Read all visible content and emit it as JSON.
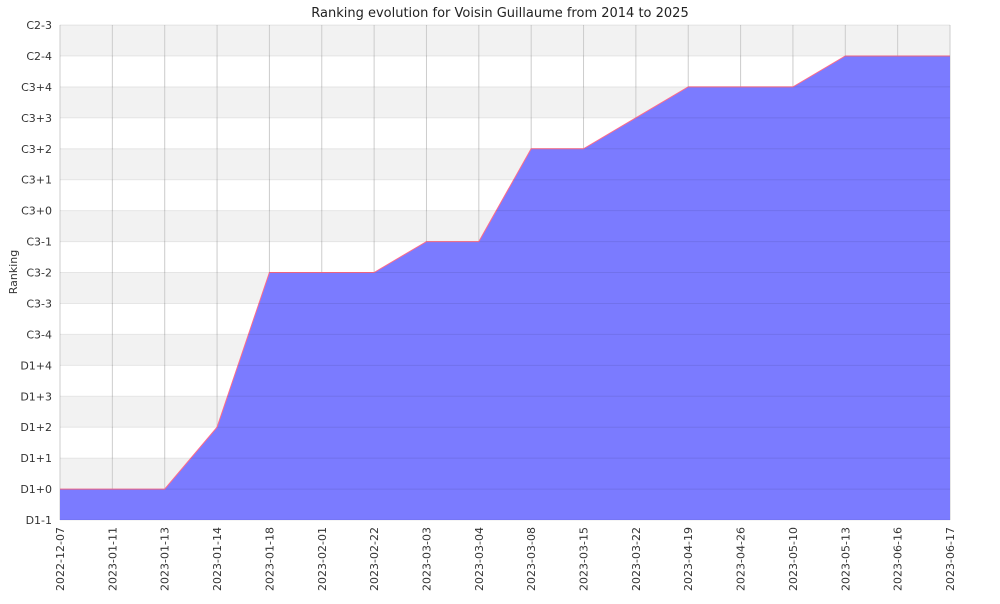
{
  "chart_data": {
    "type": "area",
    "title": "Ranking evolution for Voisin Guillaume from 2014 to 2025",
    "xlabel": "",
    "ylabel": "Ranking",
    "y_categories": [
      "D1-1",
      "D1+0",
      "D1+1",
      "D1+2",
      "D1+3",
      "D1+4",
      "C3-4",
      "C3-3",
      "C3-2",
      "C3-1",
      "C3+0",
      "C3+1",
      "C3+2",
      "C3+3",
      "C3+4",
      "C2-4",
      "C2-3"
    ],
    "x": [
      "2022-12-07",
      "2023-01-11",
      "2023-01-13",
      "2023-01-14",
      "2023-01-18",
      "2023-02-01",
      "2023-02-22",
      "2023-03-03",
      "2023-03-04",
      "2023-03-08",
      "2023-03-15",
      "2023-03-22",
      "2023-04-19",
      "2023-04-26",
      "2023-05-10",
      "2023-05-13",
      "2023-06-16",
      "2023-06-17"
    ],
    "series": [
      {
        "values": [
          "D1+0",
          "D1+0",
          "D1+0",
          "D1+2",
          "C3-2",
          "C3-2",
          "C3-2",
          "C3-1",
          "C3-1",
          "C3+2",
          "C3+2",
          "C3+3",
          "C3+4",
          "C3+4",
          "C3+4",
          "C2-4",
          "C2-4",
          "C2-4"
        ]
      }
    ],
    "grid": true,
    "colors": {
      "fill": "#7b7bff",
      "edge": "#ff6b8a",
      "band": "#f2f2f2",
      "grid": "#cccccc"
    }
  }
}
